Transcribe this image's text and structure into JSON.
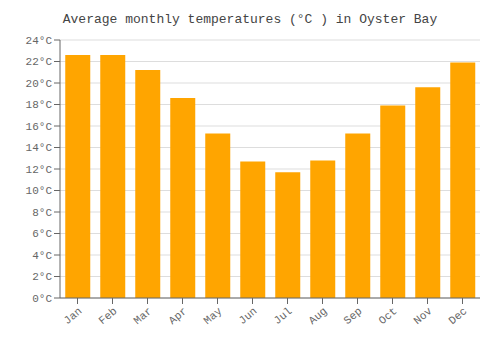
{
  "chart_data": {
    "type": "bar",
    "title": "Average monthly temperatures (°C ) in Oyster Bay",
    "categories": [
      "Jan",
      "Feb",
      "Mar",
      "Apr",
      "May",
      "Jun",
      "Jul",
      "Aug",
      "Sep",
      "Oct",
      "Nov",
      "Dec"
    ],
    "values": [
      22.6,
      22.6,
      21.2,
      18.6,
      15.3,
      12.7,
      11.7,
      12.8,
      15.3,
      17.9,
      19.6,
      21.9
    ],
    "color": "#FFA500",
    "ylim": [
      0,
      24
    ],
    "yticks": [
      {
        "value": 0,
        "label": "0°C"
      },
      {
        "value": 2,
        "label": "2°C"
      },
      {
        "value": 4,
        "label": "4°C"
      },
      {
        "value": 6,
        "label": "6°C"
      },
      {
        "value": 8,
        "label": "8°C"
      },
      {
        "value": 10,
        "label": "10°C"
      },
      {
        "value": 12,
        "label": "12°C"
      },
      {
        "value": 14,
        "label": "14°C"
      },
      {
        "value": 16,
        "label": "16°C"
      },
      {
        "value": 18,
        "label": "18°C"
      },
      {
        "value": 20,
        "label": "20°C"
      },
      {
        "value": 22,
        "label": "22°C"
      },
      {
        "value": 24,
        "label": "24°C"
      }
    ],
    "grid": true
  }
}
